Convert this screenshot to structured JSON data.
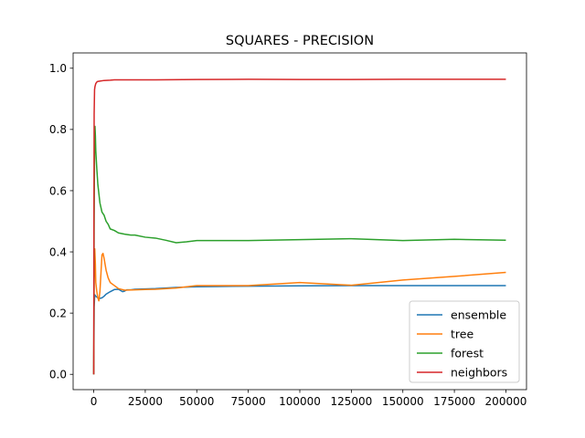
{
  "chart_data": {
    "type": "line",
    "title": "SQUARES - PRECISION",
    "xlabel": "",
    "ylabel": "",
    "xlim": [
      -10000,
      210000
    ],
    "ylim": [
      -0.05,
      1.05
    ],
    "xticks": [
      0,
      25000,
      50000,
      75000,
      100000,
      125000,
      150000,
      175000,
      200000
    ],
    "xtick_labels": [
      "0",
      "25000",
      "50000",
      "75000",
      "100000",
      "125000",
      "150000",
      "175000",
      "200000"
    ],
    "yticks": [
      0.0,
      0.2,
      0.4,
      0.6,
      0.8,
      1.0
    ],
    "ytick_labels": [
      "0.0",
      "0.2",
      "0.4",
      "0.6",
      "0.8",
      "1.0"
    ],
    "grid": false,
    "legend_position": "lower-right",
    "series": [
      {
        "name": "ensemble",
        "color": "#1f77b4",
        "x": [
          0,
          200,
          500,
          1000,
          2000,
          3000,
          4000,
          5000,
          6000,
          8000,
          10000,
          12000,
          14000,
          15000,
          16000,
          18000,
          20000,
          25000,
          30000,
          35000,
          40000,
          50000,
          60000,
          75000,
          100000,
          125000,
          150000,
          175000,
          200000
        ],
        "y": [
          0.0,
          0.22,
          0.26,
          0.255,
          0.25,
          0.248,
          0.25,
          0.255,
          0.262,
          0.27,
          0.277,
          0.278,
          0.27,
          0.272,
          0.276,
          0.276,
          0.278,
          0.279,
          0.28,
          0.282,
          0.284,
          0.286,
          0.287,
          0.288,
          0.289,
          0.29,
          0.29,
          0.29,
          0.29
        ]
      },
      {
        "name": "tree",
        "color": "#ff7f0e",
        "x": [
          0,
          200,
          500,
          800,
          1000,
          1500,
          2000,
          2500,
          3000,
          3500,
          4000,
          4500,
          5000,
          6000,
          7000,
          8000,
          10000,
          12000,
          15000,
          20000,
          25000,
          30000,
          40000,
          50000,
          75000,
          100000,
          125000,
          150000,
          175000,
          200000
        ],
        "y": [
          0.0,
          0.3,
          0.41,
          0.36,
          0.3,
          0.27,
          0.25,
          0.24,
          0.27,
          0.33,
          0.39,
          0.395,
          0.38,
          0.34,
          0.315,
          0.3,
          0.29,
          0.28,
          0.275,
          0.276,
          0.277,
          0.278,
          0.282,
          0.29,
          0.29,
          0.3,
          0.291,
          0.308,
          0.32,
          0.333
        ]
      },
      {
        "name": "forest",
        "color": "#2ca02c",
        "x": [
          0,
          200,
          400,
          600,
          800,
          1000,
          1500,
          2000,
          3000,
          4000,
          5000,
          6000,
          7000,
          8000,
          10000,
          12000,
          15000,
          18000,
          20000,
          25000,
          30000,
          35000,
          40000,
          45000,
          50000,
          75000,
          100000,
          125000,
          150000,
          175000,
          200000
        ],
        "y": [
          0.0,
          0.5,
          0.75,
          0.81,
          0.78,
          0.73,
          0.67,
          0.62,
          0.56,
          0.53,
          0.52,
          0.5,
          0.49,
          0.475,
          0.47,
          0.462,
          0.458,
          0.455,
          0.455,
          0.448,
          0.445,
          0.438,
          0.43,
          0.433,
          0.437,
          0.437,
          0.44,
          0.443,
          0.437,
          0.441,
          0.438
        ]
      },
      {
        "name": "neighbors",
        "color": "#d62728",
        "x": [
          0,
          100,
          200,
          400,
          600,
          800,
          1000,
          1500,
          2000,
          3000,
          5000,
          8000,
          10000,
          15000,
          20000,
          30000,
          50000,
          75000,
          100000,
          125000,
          150000,
          175000,
          200000
        ],
        "y": [
          0.0,
          0.5,
          0.85,
          0.93,
          0.94,
          0.945,
          0.95,
          0.955,
          0.957,
          0.958,
          0.96,
          0.961,
          0.962,
          0.962,
          0.962,
          0.962,
          0.963,
          0.964,
          0.963,
          0.963,
          0.964,
          0.964,
          0.964
        ]
      }
    ]
  }
}
